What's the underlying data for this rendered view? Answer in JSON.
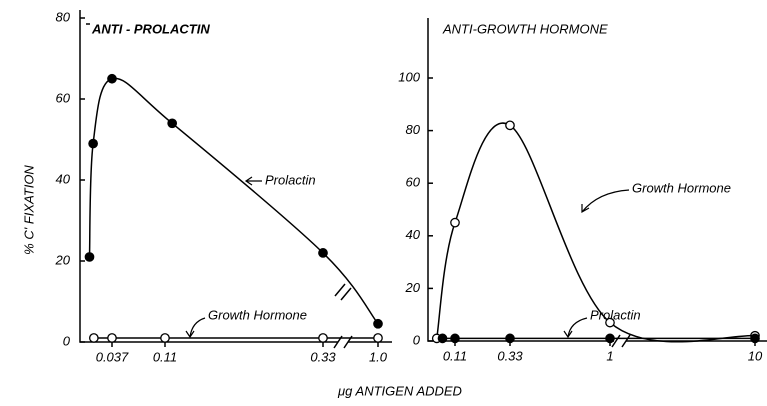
{
  "chart_data": [
    {
      "type": "line",
      "title": "ANTI - PROLACTIN",
      "ylabel": "% C' FIXATION",
      "xlabel": "μg ANTIGEN ADDED",
      "ylim": [
        0,
        80
      ],
      "yticks": [
        0,
        20,
        40,
        60,
        80
      ],
      "xticks": [
        0.037,
        0.11,
        0.33,
        {
          "value": 1,
          "label": "1.0"
        }
      ],
      "series": [
        {
          "name": "Prolactin",
          "color": "#000000",
          "marker": "filled",
          "x": [
            0.006,
            0.011,
            0.037,
            0.12,
            0.33,
            1
          ],
          "values": [
            21,
            49,
            65,
            54,
            22,
            4.5
          ]
        },
        {
          "name": "Growth Hormone",
          "color": "#000000",
          "marker": "open",
          "x": [
            0.012,
            0.037,
            0.11,
            0.33,
            1
          ],
          "values": [
            1,
            1,
            1,
            1,
            1
          ]
        }
      ]
    },
    {
      "type": "line",
      "title": "ANTI-GROWTH HORMONE",
      "ylim": [
        0,
        100
      ],
      "yticks": [
        0,
        20,
        40,
        60,
        80,
        100
      ],
      "xticks": [
        0.11,
        0.33,
        1,
        10
      ],
      "series": [
        {
          "name": "Growth Hormone",
          "color": "#000000",
          "marker": "open",
          "x": [
            0.037,
            0.11,
            0.33,
            1,
            10
          ],
          "values": [
            1,
            45,
            82,
            7,
            2
          ]
        },
        {
          "name": "Prolactin",
          "color": "#000000",
          "marker": "filled",
          "x": [
            0.06,
            0.11,
            0.33,
            1,
            10
          ],
          "values": [
            1,
            1,
            1,
            1,
            1
          ]
        }
      ]
    }
  ]
}
